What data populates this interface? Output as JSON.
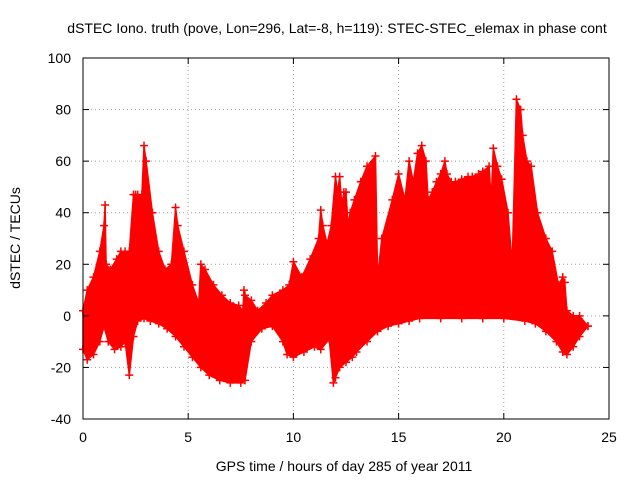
{
  "chart_data": {
    "type": "area",
    "title": "dSTEC Iono. truth (pove, Lon=296, Lat=-8, h=119): STEC-STEC_elemax in phase cont",
    "xlabel": "GPS time / hours of day 285 of year 2011",
    "ylabel": "dSTEC  / TECUs",
    "xlim": [
      0,
      25
    ],
    "ylim": [
      -40,
      100
    ],
    "xticks": [
      0,
      5,
      10,
      15,
      20,
      25
    ],
    "yticks": [
      -40,
      -20,
      0,
      20,
      40,
      60,
      80,
      100
    ],
    "grid": true,
    "legend": "none",
    "marker": "plus",
    "color": "#ff0000",
    "upper_envelope": {
      "x": [
        0,
        0.2,
        0.5,
        0.8,
        1.0,
        1.05,
        1.1,
        1.3,
        1.6,
        1.8,
        2.0,
        2.2,
        2.4,
        2.5,
        2.6,
        2.8,
        2.9,
        3.0,
        3.3,
        3.6,
        3.9,
        4.2,
        4.4,
        4.5,
        4.8,
        5.2,
        5.5,
        5.6,
        5.8,
        6.2,
        6.6,
        7.0,
        7.4,
        7.6,
        7.65,
        7.7,
        8.0,
        8.3,
        8.7,
        9.0,
        9.5,
        9.8,
        10.0,
        10.4,
        10.8,
        11.2,
        11.3,
        11.4,
        11.6,
        11.8,
        12.0,
        12.1,
        12.2,
        12.3,
        12.4,
        12.5,
        12.6,
        12.7,
        12.9,
        13.2,
        13.5,
        13.9,
        14.0,
        14.2,
        14.7,
        15.0,
        15.3,
        15.5,
        15.7,
        15.9,
        16.1,
        16.3,
        16.4,
        16.6,
        16.8,
        17.0,
        17.2,
        17.3,
        17.5,
        17.7,
        18.0,
        18.3,
        18.5,
        18.8,
        19.0,
        19.3,
        19.4,
        19.5,
        19.7,
        19.9,
        20.2,
        20.4,
        20.6,
        20.8,
        20.9,
        21.1,
        21.3,
        21.6,
        22.0,
        22.3,
        22.6,
        22.8,
        22.9,
        23.0,
        23.3,
        23.6,
        24.0
      ],
      "y": [
        2,
        10,
        15,
        25,
        35,
        43,
        20,
        18,
        22,
        25,
        25,
        25,
        47,
        47,
        47,
        47,
        66,
        60,
        40,
        25,
        18,
        20,
        42,
        35,
        25,
        12,
        5,
        20,
        18,
        12,
        8,
        5,
        4,
        2,
        10,
        8,
        6,
        2,
        5,
        8,
        10,
        12,
        21,
        15,
        22,
        30,
        41,
        35,
        28,
        35,
        54,
        48,
        54,
        43,
        48,
        48,
        35,
        40,
        45,
        52,
        58,
        62,
        15,
        30,
        45,
        55,
        45,
        60,
        52,
        63,
        66,
        60,
        45,
        48,
        52,
        55,
        60,
        55,
        52,
        52,
        53,
        54,
        54,
        55,
        56,
        58,
        45,
        65,
        58,
        53,
        40,
        20,
        84,
        80,
        70,
        60,
        58,
        40,
        30,
        25,
        12,
        15,
        13,
        2,
        0,
        0,
        -4
      ]
    },
    "lower_envelope": {
      "x": [
        0,
        0.2,
        0.5,
        0.8,
        1.0,
        1.2,
        1.5,
        1.8,
        2.0,
        2.2,
        2.4,
        2.6,
        2.9,
        3.2,
        3.6,
        4.0,
        4.4,
        4.8,
        5.2,
        5.6,
        6.0,
        6.5,
        7.0,
        7.5,
        7.7,
        8.0,
        8.5,
        9.0,
        9.5,
        9.7,
        10.0,
        10.5,
        11.0,
        11.3,
        11.7,
        11.9,
        12.0,
        12.2,
        12.5,
        12.8,
        13.0,
        13.5,
        14.0,
        14.5,
        15.0,
        15.5,
        16.0,
        17.0,
        18.0,
        19.0,
        20.0,
        21.0,
        21.5,
        22.0,
        22.5,
        22.8,
        23.0,
        23.3,
        23.6,
        24.0
      ],
      "y": [
        -13,
        -17,
        -15,
        -10,
        -4,
        -10,
        -13,
        -12,
        -10,
        -23,
        -8,
        -2,
        -1,
        -2,
        -3,
        -5,
        -8,
        -12,
        -16,
        -20,
        -23,
        -25,
        -26,
        -26,
        -25,
        -10,
        -5,
        -4,
        -10,
        -15,
        -16,
        -14,
        -12,
        -13,
        -9,
        -26,
        -24,
        -20,
        -18,
        -16,
        -14,
        -10,
        -6,
        -4,
        -3,
        -2,
        -1,
        -1,
        -1,
        -1,
        -1,
        -2,
        -3,
        -6,
        -10,
        -14,
        -15,
        -12,
        -8,
        -4
      ]
    }
  }
}
